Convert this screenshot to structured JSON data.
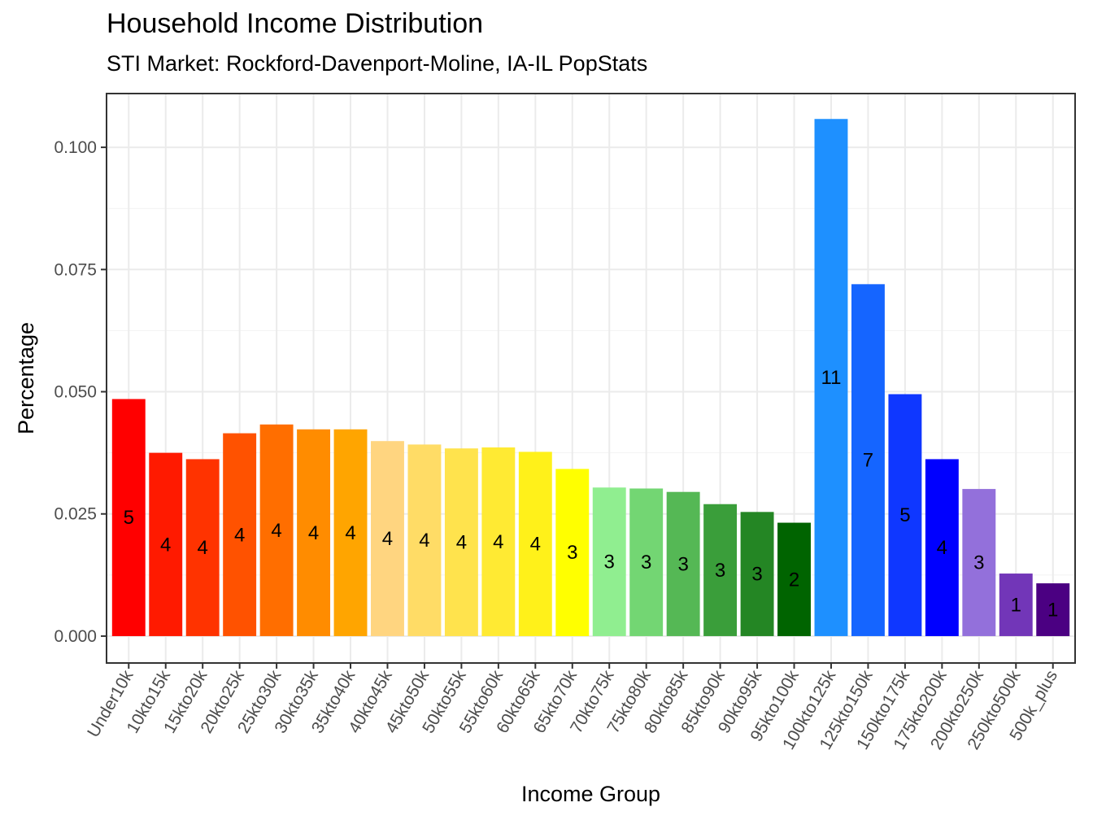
{
  "chart_data": {
    "type": "bar",
    "title": "Household Income Distribution",
    "subtitle": "STI Market: Rockford-Davenport-Moline, IA-IL PopStats",
    "xlabel": "Income Group",
    "ylabel": "Percentage",
    "ylim": [
      -0.0055,
      0.111
    ],
    "yticks": [
      0.0,
      0.025,
      0.05,
      0.075,
      0.1
    ],
    "ytick_labels": [
      "0.000",
      "0.025",
      "0.050",
      "0.075",
      "0.100"
    ],
    "grid": true,
    "legend": "none",
    "categories": [
      "Under10k",
      "10kto15k",
      "15kto20k",
      "20kto25k",
      "25kto30k",
      "30kto35k",
      "35kto40k",
      "40kto45k",
      "45kto50k",
      "50kto55k",
      "55kto60k",
      "60kto65k",
      "65kto70k",
      "70kto75k",
      "75kto80k",
      "80kto85k",
      "85kto90k",
      "90kto95k",
      "95kto100k",
      "100kto125k",
      "125kto150k",
      "150kto175k",
      "175kto200k",
      "200kto250k",
      "250kto500k",
      "500k_plus"
    ],
    "values": [
      0.0485,
      0.0375,
      0.0362,
      0.0415,
      0.0433,
      0.0423,
      0.0423,
      0.0399,
      0.0392,
      0.0384,
      0.0386,
      0.0377,
      0.0342,
      0.0304,
      0.0302,
      0.0295,
      0.027,
      0.0254,
      0.0232,
      0.1058,
      0.072,
      0.0495,
      0.0362,
      0.0301,
      0.0128,
      0.0108
    ],
    "labels": [
      "5",
      "4",
      "4",
      "4",
      "4",
      "4",
      "4",
      "4",
      "4",
      "4",
      "4",
      "4",
      "3",
      "3",
      "3",
      "3",
      "3",
      "3",
      "2",
      "11",
      "7",
      "5",
      "4",
      "3",
      "1",
      "1"
    ],
    "colors": [
      "#ff0000",
      "#ff1a00",
      "#ff3300",
      "#ff5200",
      "#ff6e00",
      "#ff8c00",
      "#ffa500",
      "#ffd580",
      "#ffdc66",
      "#ffe34d",
      "#ffea33",
      "#fff11a",
      "#ffff00",
      "#90ee90",
      "#73d673",
      "#55b855",
      "#3a9e3a",
      "#248624",
      "#006400",
      "#1e90ff",
      "#1565ff",
      "#0f37ff",
      "#0000ff",
      "#9370db",
      "#7236b8",
      "#4b0082"
    ]
  }
}
